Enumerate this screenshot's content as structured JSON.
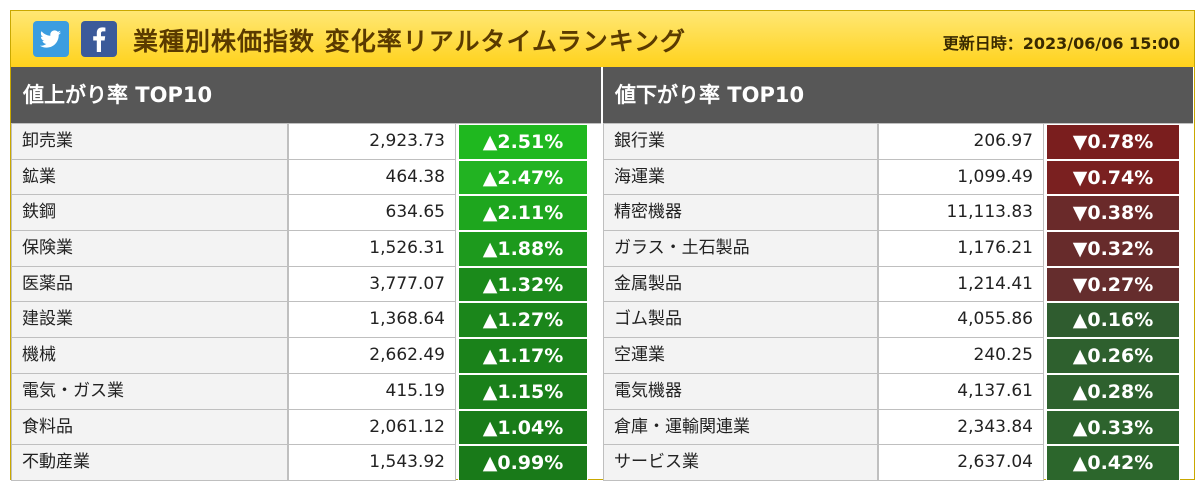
{
  "header": {
    "title": "業種別株価指数 変化率リアルタイムランキング",
    "updated": "更新日時：2023/06/06 15:00",
    "share_icons": [
      "twitter-icon",
      "facebook-icon"
    ],
    "background_color": "#ffd21c"
  },
  "gainers": {
    "heading": "値上がり率 TOP10",
    "rows": [
      {
        "name": "卸売業",
        "value": "2,923.73",
        "change": "▲2.51%",
        "color": "#1fb81f"
      },
      {
        "name": "鉱業",
        "value": "464.38",
        "change": "▲2.47%",
        "color": "#22b322"
      },
      {
        "name": "鉄鋼",
        "value": "634.65",
        "change": "▲2.11%",
        "color": "#1ea61e"
      },
      {
        "name": "保険業",
        "value": "1,526.31",
        "change": "▲1.88%",
        "color": "#1d9a1d"
      },
      {
        "name": "医薬品",
        "value": "3,777.07",
        "change": "▲1.32%",
        "color": "#1b8a1b"
      },
      {
        "name": "建設業",
        "value": "1,368.64",
        "change": "▲1.27%",
        "color": "#1b861b"
      },
      {
        "name": "機械",
        "value": "2,662.49",
        "change": "▲1.17%",
        "color": "#1a821a"
      },
      {
        "name": "電気・ガス業",
        "value": "415.19",
        "change": "▲1.15%",
        "color": "#1a801a"
      },
      {
        "name": "食料品",
        "value": "2,061.12",
        "change": "▲1.04%",
        "color": "#197c19"
      },
      {
        "name": "不動産業",
        "value": "1,543.92",
        "change": "▲0.99%",
        "color": "#197a19"
      }
    ]
  },
  "losers": {
    "heading": "値下がり率 TOP10",
    "rows": [
      {
        "name": "銀行業",
        "value": "206.97",
        "change": "▼0.78%",
        "color": "#7a1e1e"
      },
      {
        "name": "海運業",
        "value": "1,099.49",
        "change": "▼0.74%",
        "color": "#7a2020"
      },
      {
        "name": "精密機器",
        "value": "11,113.83",
        "change": "▼0.38%",
        "color": "#6a2a2a"
      },
      {
        "name": "ガラス・土石製品",
        "value": "1,176.21",
        "change": "▼0.32%",
        "color": "#672b2b"
      },
      {
        "name": "金属製品",
        "value": "1,214.41",
        "change": "▼0.27%",
        "color": "#652d2d"
      },
      {
        "name": "ゴム製品",
        "value": "4,055.86",
        "change": "▲0.16%",
        "color": "#2f5c2f"
      },
      {
        "name": "空運業",
        "value": "240.25",
        "change": "▲0.26%",
        "color": "#2e602e"
      },
      {
        "name": "電気機器",
        "value": "4,137.61",
        "change": "▲0.28%",
        "color": "#2e612e"
      },
      {
        "name": "倉庫・運輸関連業",
        "value": "2,343.84",
        "change": "▲0.33%",
        "color": "#2d632d"
      },
      {
        "name": "サービス業",
        "value": "2,637.04",
        "change": "▲0.42%",
        "color": "#2c662c"
      }
    ]
  }
}
